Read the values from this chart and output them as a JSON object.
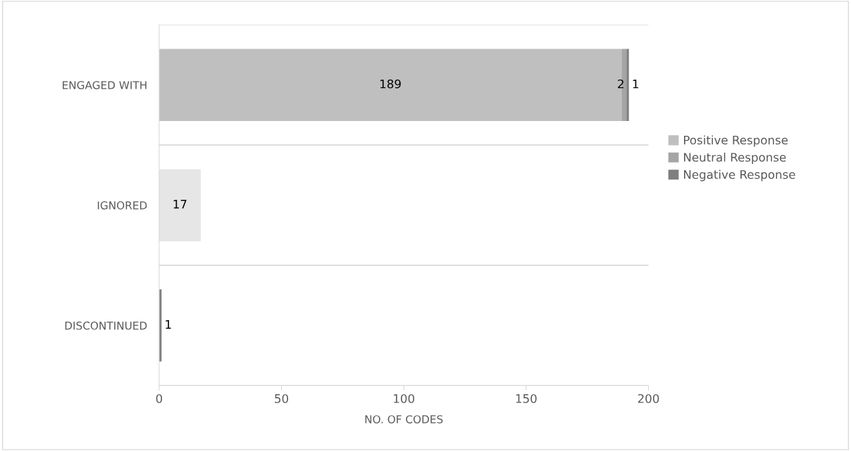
{
  "chart_data": {
    "type": "bar",
    "orientation": "horizontal",
    "stacked": true,
    "xlabel": "NO. OF CODES",
    "categories": [
      "ENGAGED WITH",
      "IGNORED",
      "DISCONTINUED"
    ],
    "series": [
      {
        "name": "Positive Response",
        "color": "#bfbfbf",
        "colors": [
          "#bfbfbf",
          "#e7e6e6",
          "#bfbfbf"
        ],
        "values": [
          189,
          17,
          null
        ]
      },
      {
        "name": "Neutral Response",
        "color": "#a5a5a5",
        "values": [
          2,
          null,
          null
        ]
      },
      {
        "name": "Negative Response",
        "color": "#7f7f7f",
        "values": [
          1,
          null,
          1
        ]
      }
    ],
    "xlim": [
      0,
      200
    ],
    "xticks": [
      0,
      50,
      100,
      150,
      200
    ],
    "grid": "y",
    "legend": "right",
    "data_labels": true
  }
}
